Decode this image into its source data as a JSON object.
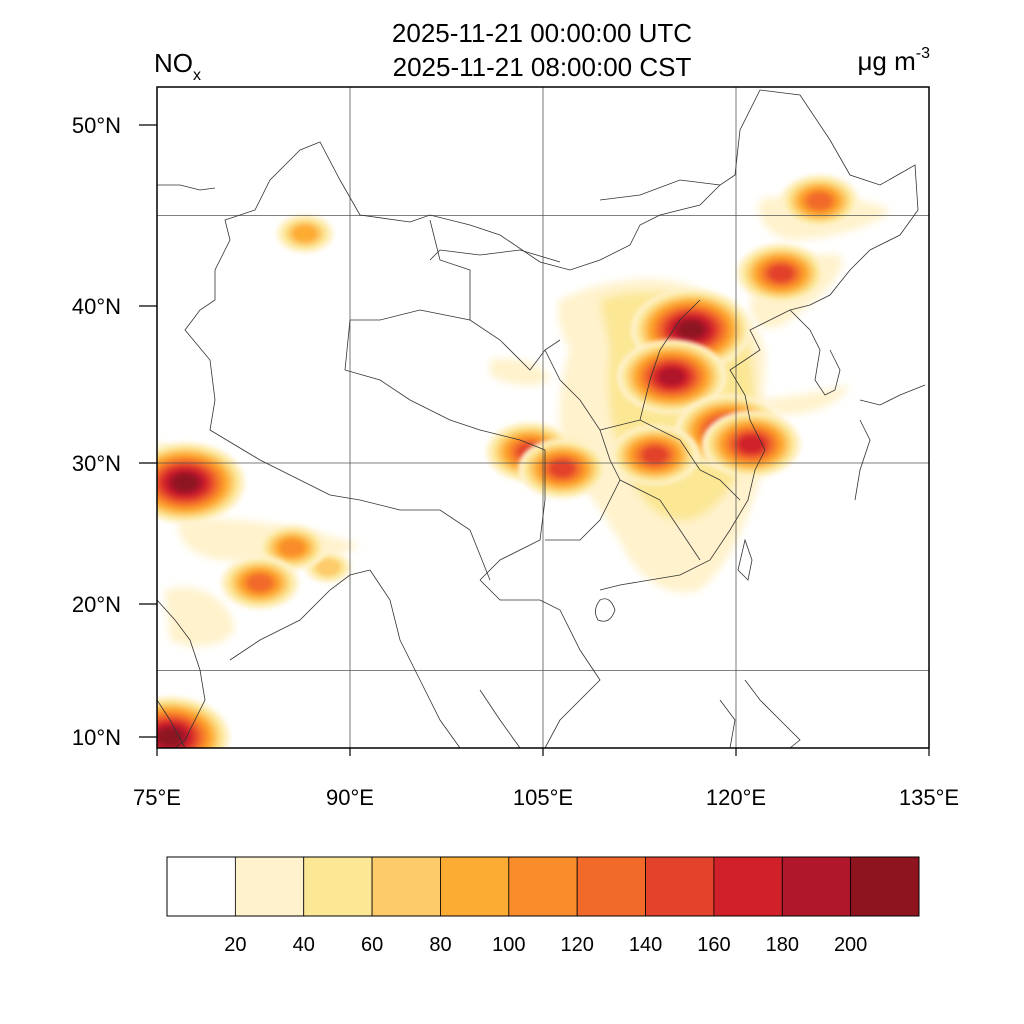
{
  "header": {
    "time_utc": "2025-11-21 00:00:00 UTC",
    "time_cst": "2025-11-21 08:00:00 CST",
    "variable": "NO",
    "variable_sub": "x",
    "unit": "μg m",
    "unit_sup": "-3"
  },
  "map": {
    "lon_range": [
      75,
      135
    ],
    "lat_range": [
      9,
      52.5
    ],
    "x_ticks": [
      {
        "value": 75,
        "label": "75°E"
      },
      {
        "value": 90,
        "label": "90°E"
      },
      {
        "value": 105,
        "label": "105°E"
      },
      {
        "value": 120,
        "label": "120°E"
      },
      {
        "value": 135,
        "label": "135°E"
      }
    ],
    "y_ticks": [
      {
        "value": 10,
        "label": "10°N"
      },
      {
        "value": 20,
        "label": "20°N"
      },
      {
        "value": 30,
        "label": "30°N"
      },
      {
        "value": 40,
        "label": "40°N"
      },
      {
        "value": 50,
        "label": "50°N"
      }
    ],
    "gridlines": "on"
  },
  "colorbar": {
    "labels": [
      "20",
      "40",
      "60",
      "80",
      "100",
      "120",
      "140",
      "160",
      "180",
      "200"
    ],
    "colors": [
      "#ffffff",
      "#fff2cc",
      "#fce795",
      "#fdcb6a",
      "#fdac33",
      "#f98d2c",
      "#f26a2a",
      "#e3432a",
      "#d0202a",
      "#b0172b",
      "#8e1520"
    ]
  },
  "chart_data": {
    "type": "heatmap",
    "title": "2025-11-21 00:00:00 UTC / 2025-11-21 08:00:00 CST",
    "variable": "NOx",
    "unit": "μg m-3",
    "levels": [
      20,
      40,
      60,
      80,
      100,
      120,
      140,
      160,
      180,
      200
    ],
    "hotspots": [
      {
        "lon": 116.5,
        "lat": 38.5,
        "value": 200
      },
      {
        "lon": 115.0,
        "lat": 35.5,
        "value": 180
      },
      {
        "lon": 119.5,
        "lat": 32.0,
        "value": 190
      },
      {
        "lon": 121.2,
        "lat": 31.2,
        "value": 160
      },
      {
        "lon": 113.7,
        "lat": 30.5,
        "value": 140
      },
      {
        "lon": 104.0,
        "lat": 30.7,
        "value": 150
      },
      {
        "lon": 106.5,
        "lat": 29.6,
        "value": 140
      },
      {
        "lon": 123.5,
        "lat": 41.8,
        "value": 150
      },
      {
        "lon": 126.5,
        "lat": 45.8,
        "value": 130
      },
      {
        "lon": 77.2,
        "lat": 28.6,
        "value": 200
      },
      {
        "lon": 88.3,
        "lat": 22.6,
        "value": 60
      },
      {
        "lon": 85.5,
        "lat": 24.0,
        "value": 100
      },
      {
        "lon": 83.0,
        "lat": 21.5,
        "value": 120
      },
      {
        "lon": 86.5,
        "lat": 44.0,
        "value": 80
      },
      {
        "lon": 76.0,
        "lat": 10.0,
        "value": 200
      }
    ]
  }
}
